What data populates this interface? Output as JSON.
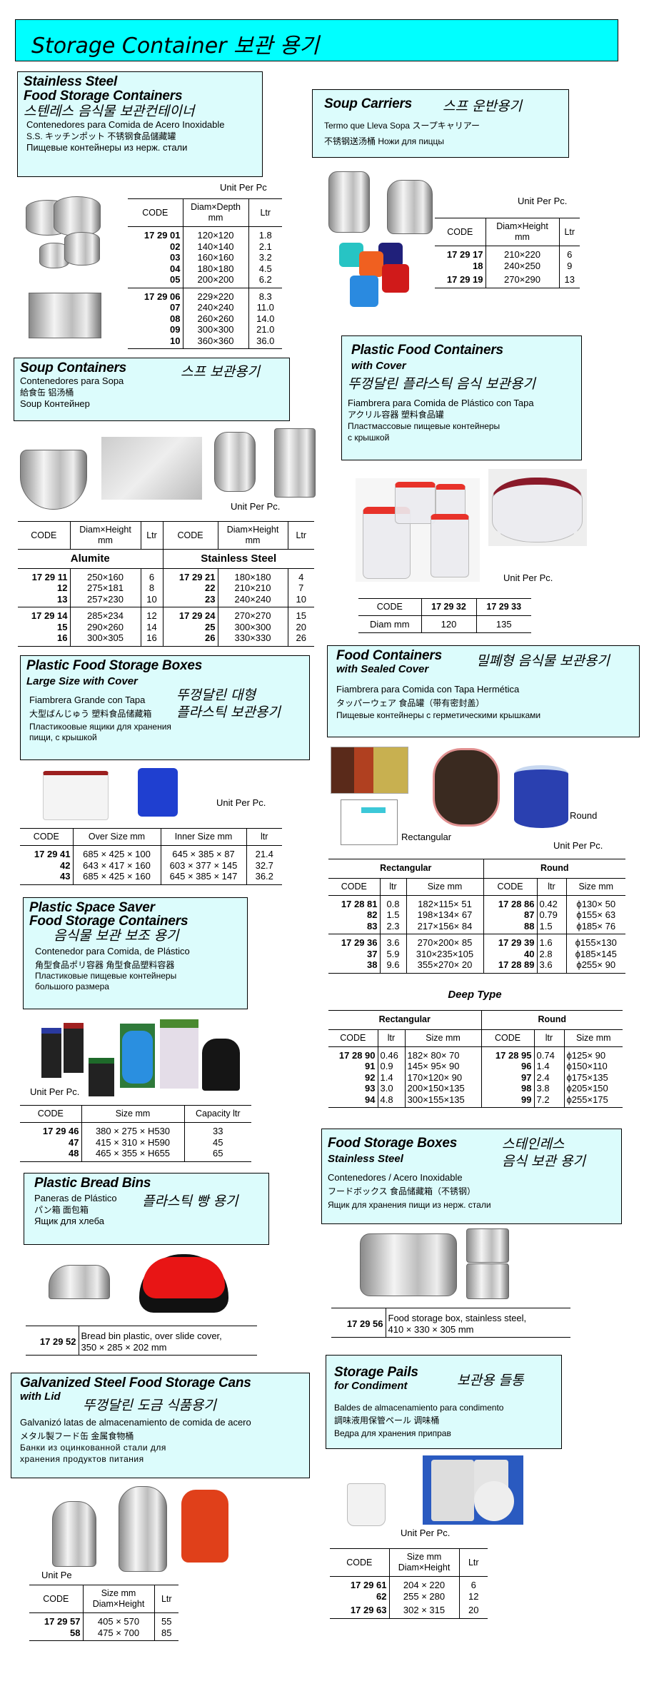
{
  "header": {
    "title": "Storage Container  보관 용기"
  },
  "colors": {
    "header_bg": "#00ffff",
    "section_bg": "#dcfcfc"
  },
  "sections": {
    "ss": {
      "title1": "Stainless Steel",
      "title2": "Food Storage Containers",
      "ko": "스텐레스 음식물 보관컨테이너",
      "es": "Contenedores para Comida de Acero Inoxidable",
      "ja_zh": "S.S. キッチンポット     不锈钢食品儲藏罐",
      "ru": "Пищевые контейнеры из нерж. стали",
      "unit": "Unit Per Pc",
      "table": {
        "headers": [
          "CODE",
          "Diam×Depth\nmm",
          "Ltr"
        ],
        "groups": [
          [
            [
              "17 29 01",
              "120×120",
              "1.8"
            ],
            [
              "02",
              "140×140",
              "2.1"
            ],
            [
              "03",
              "160×160",
              "3.2"
            ],
            [
              "04",
              "180×180",
              "4.5"
            ],
            [
              "05",
              "200×200",
              "6.2"
            ]
          ],
          [
            [
              "17 29 06",
              "229×220",
              "8.3"
            ],
            [
              "07",
              "240×240",
              "11.0"
            ],
            [
              "08",
              "260×260",
              "14.0"
            ],
            [
              "09",
              "300×300",
              "21.0"
            ],
            [
              "10",
              "360×360",
              "36.0"
            ]
          ]
        ]
      }
    },
    "soup": {
      "title1": "Soup Containers",
      "ko": "스프 보관용기",
      "es": "Contenedores para Sopa",
      "ja_zh": "給食缶        铝汤桶",
      "ru": "Soup Контейнер",
      "unit": "Unit Per Pc.",
      "table": {
        "headers": [
          "CODE",
          "Diam×Height\nmm",
          "Ltr",
          "CODE",
          "Diam×Height\nmm",
          "Ltr"
        ],
        "subheaders": [
          "Alumite",
          "Stainless Steel"
        ],
        "groups": [
          [
            [
              "17 29 11",
              "250×160",
              "6",
              "17 29 21",
              "180×180",
              "4"
            ],
            [
              "12",
              "275×181",
              "8",
              "22",
              "210×210",
              "7"
            ],
            [
              "13",
              "257×230",
              "10",
              "23",
              "240×240",
              "10"
            ]
          ],
          [
            [
              "17 29 14",
              "285×234",
              "12",
              "17 29 24",
              "270×270",
              "15"
            ],
            [
              "15",
              "290×260",
              "14",
              "25",
              "300×300",
              "20"
            ],
            [
              "16",
              "300×305",
              "16",
              "26",
              "330×330",
              "26"
            ]
          ]
        ]
      }
    },
    "pfsb": {
      "title1": "Plastic Food Storage Boxes",
      "title2": "Large Size with Cover",
      "ko1": "뚜껑달린 대형",
      "ko2": "플라스틱 보관용기",
      "es": "Fiambrera Grande con Tapa",
      "ja_zh": "大型ばんじゅう    塑料食品储藏箱",
      "ru": "Пластикоовые ящики для хранения\nпищи, с крышкой",
      "unit": "Unit Per Pc.",
      "table": {
        "headers": [
          "CODE",
          "Over Size mm",
          "Inner Size mm",
          "ltr"
        ],
        "groups": [
          [
            [
              "17 29 41",
              "685 × 425 × 100",
              "645 × 385 ×   87",
              "21.4"
            ],
            [
              "42",
              "643 × 417 × 160",
              "603 × 377 × 145",
              "32.7"
            ],
            [
              "43",
              "685 × 425 × 160",
              "645 × 385 × 147",
              "36.2"
            ]
          ]
        ]
      }
    },
    "pss": {
      "title1": "Plastic Space Saver",
      "title2": "Food Storage Containers",
      "ko": "음식물 보관 보조 용기",
      "es": "Contenedor para Comida, de Plástico",
      "ja_zh": "角型食品ポリ容器     角型食品塑料容器",
      "ru": "Пластиковые пищевые контейнеры\nбольшого размера",
      "unit": "Unit Per Pc.",
      "table": {
        "headers": [
          "CODE",
          "Size mm",
          "Capacity ltr"
        ],
        "groups": [
          [
            [
              "17 29 46",
              "380 × 275 × H530",
              "33"
            ],
            [
              "47",
              "415 × 310 × H590",
              "45"
            ],
            [
              "48",
              "465 × 355 × H655",
              "65"
            ]
          ]
        ]
      }
    },
    "bread": {
      "title1": "Plastic Bread Bins",
      "ko": "플라스틱 빵 용기",
      "es": "Paneras de Plástico",
      "ja_zh": "パン箱     面包箱",
      "ru": "Ящик для хлеба",
      "table": {
        "groups": [
          [
            [
              "17 29 52",
              "Bread bin plastic, over slide cover,\n 350 × 285 × 202 mm"
            ]
          ]
        ]
      }
    },
    "galv": {
      "title1": "Galvanized Steel Food Storage Cans",
      "title2": "with Lid",
      "ko": "뚜껑달린 도금 식품용기",
      "es": "Galvanizó latas de almacenamiento de comida de acero",
      "ja_zh": "メタル製フード缶     金属食物桶",
      "ru": "Банки из оцинкованной стали для\nхранения продуктов питания",
      "unit": "Unit Pe",
      "table": {
        "headers": [
          "CODE",
          "Size mm\nDiam×Height",
          "Ltr"
        ],
        "groups": [
          [
            [
              "17 29 57",
              "405 × 570",
              "55"
            ],
            [
              "58",
              "475 × 700",
              "85"
            ]
          ]
        ]
      }
    },
    "carriers": {
      "title1": "Soup Carriers",
      "ko": "스프 운반용기",
      "es_ja": "Termo que Lleva Sopa   スープキャリアー",
      "zh_ru": "不锈钢送汤桶  Ножи для пиццы",
      "unit": "Unit Per Pc.",
      "table": {
        "headers": [
          "CODE",
          "Diam×Height\nmm",
          "Ltr"
        ],
        "groups": [
          [
            [
              "17 29 17",
              "210×220",
              "6"
            ],
            [
              "18",
              "240×250",
              "9"
            ]
          ],
          [
            [
              "17 29 19",
              "270×290",
              "13"
            ]
          ]
        ]
      }
    },
    "pfc": {
      "title1": "Plastic Food Containers",
      "title2": "with Cover",
      "ko": "뚜껑달린 플라스틱 음식 보관용기",
      "es": "Fiambrera para Comida de Plástico con Tapa",
      "ja_zh": "アクリル容器    塑料食品罐",
      "ru": "Пластмассовые пищевые контейнеры\nс крышкой",
      "unit": "Unit Per Pc.",
      "table": {
        "headers": [
          "CODE",
          "17 29 32",
          "17 29 33"
        ],
        "groups": [
          [
            [
              "Diam mm",
              "120",
              "135"
            ]
          ]
        ]
      }
    },
    "sealed": {
      "title1": "Food Containers",
      "title2": "with Sealed Cover",
      "ko": "밀폐형 음식물 보관용기",
      "es": "Fiambrera para Comida con Tapa Hermética",
      "ja_zh": "タッパーウェア      食品罐（带有密封盖）",
      "ru": "Пищевые контейнеры с герметическими крышками",
      "label_rect": "Rectangular",
      "label_round": "Round",
      "unit": "Unit Per Pc.",
      "table": {
        "group_headers": [
          "Rectangular",
          "Round"
        ],
        "headers": [
          "CODE",
          "ltr",
          "Size mm",
          "CODE",
          "ltr",
          "Size mm"
        ],
        "groups": [
          [
            [
              "17 28 81",
              "0.8",
              "182×115×  51",
              "17 28 86",
              "0.42",
              "ϕ130×  50"
            ],
            [
              "82",
              "1.5",
              "198×134×  67",
              "87",
              "0.79",
              "ϕ155×  63"
            ],
            [
              "83",
              "2.3",
              "217×156×  84",
              "88",
              "1.5",
              "ϕ185×  76"
            ]
          ],
          [
            [
              "17 29 36",
              "3.6",
              "270×200×  85",
              "17 29 39",
              "1.6",
              "ϕ155×130"
            ],
            [
              "37",
              "5.9",
              "310×235×105",
              "40",
              "2.8",
              "ϕ185×145"
            ],
            [
              "38",
              "9.6",
              "355×270×  20",
              "17 28 89",
              "3.6",
              "ϕ255×  90"
            ]
          ]
        ]
      },
      "deep_title": "Deep Type",
      "deep_table": {
        "group_headers": [
          "Rectangular",
          "Round"
        ],
        "headers": [
          "CODE",
          "ltr",
          "Size mm",
          "CODE",
          "ltr",
          "Size mm"
        ],
        "groups": [
          [
            [
              "17 28 90",
              "0.46",
              "182×  80×  70",
              "17 28 95",
              "0.74",
              "ϕ125×  90"
            ],
            [
              "91",
              "0.9",
              "145×  95×  90",
              "96",
              "1.4",
              "ϕ150×110"
            ],
            [
              "92",
              "1.4",
              "170×120×  90",
              "97",
              "2.4",
              "ϕ175×135"
            ],
            [
              "93",
              "3.0",
              "200×150×135",
              "98",
              "3.8",
              "ϕ205×150"
            ],
            [
              "94",
              "4.8",
              "300×155×135",
              "99",
              "7.2",
              "ϕ255×175"
            ]
          ]
        ]
      }
    },
    "fsb": {
      "title1": "Food Storage Boxes",
      "title2": "Stainless Steel",
      "ko1": "스테인레스",
      "ko2": "음식 보관 용기",
      "es": "Contenedores / Acero Inoxidable",
      "ja_zh": "フードボックス    食品储藏箱（不锈钢）",
      "ru": "Ящик для хранения пищи из нерж. стали",
      "table": {
        "groups": [
          [
            [
              "17 29 56",
              "Food storage box, stainless steel,\n   410 × 330 × 305 mm"
            ]
          ]
        ]
      }
    },
    "pails": {
      "title1": "Storage Pails",
      "title2": "for Condiment",
      "ko": "보관용 들통",
      "es": "Baldes de almacenamiento para condimento",
      "ja_zh": "調味液用保管ペール      调味桶",
      "ru": "Ведра для хранения приправ",
      "unit": "Unit Per Pc.",
      "table": {
        "headers": [
          "CODE",
          "Size mm\nDiam×Height",
          "Ltr"
        ],
        "groups": [
          [
            [
              "17 29 61",
              "204 × 220",
              "6"
            ],
            [
              "62",
              "255 × 280",
              "12"
            ]
          ],
          [
            [
              "17 29 63",
              "302 × 315",
              "20"
            ]
          ]
        ]
      }
    }
  }
}
